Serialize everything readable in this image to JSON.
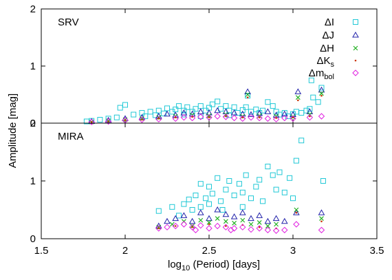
{
  "chart_data": {
    "type": "scatter",
    "xlabel": "log10 (Period) [days]",
    "ylabel": "Amplitude [mag]",
    "xlim": [
      1.5,
      3.5
    ],
    "x_ticks": [
      "1.5",
      "2",
      "2.5",
      "3",
      "3.5"
    ],
    "legend_position": "top-right",
    "series": [
      {
        "key": "I",
        "name": "ΔI",
        "marker": "square",
        "color": "#1fc8d6"
      },
      {
        "key": "J",
        "name": "ΔJ",
        "marker": "triangle",
        "color": "#2222aa"
      },
      {
        "key": "H",
        "name": "ΔH",
        "marker": "cross",
        "color": "#22b022"
      },
      {
        "key": "Ks",
        "name": "ΔKs",
        "marker": "dot",
        "color": "#cc3300"
      },
      {
        "key": "mbol",
        "name": "Δmbol",
        "marker": "diamond",
        "color": "#e020e0"
      }
    ],
    "panels": [
      {
        "label": "SRV",
        "ylim": [
          0,
          2
        ],
        "y_ticks": [
          "0",
          "1",
          "2"
        ],
        "points": {
          "I": [
            [
              1.77,
              0.03
            ],
            [
              1.8,
              0.04
            ],
            [
              1.85,
              0.06
            ],
            [
              1.9,
              0.08
            ],
            [
              1.95,
              0.1
            ],
            [
              1.97,
              0.27
            ],
            [
              2.0,
              0.32
            ],
            [
              2.05,
              0.15
            ],
            [
              2.1,
              0.18
            ],
            [
              2.12,
              0.12
            ],
            [
              2.15,
              0.2
            ],
            [
              2.18,
              0.14
            ],
            [
              2.2,
              0.22
            ],
            [
              2.23,
              0.17
            ],
            [
              2.25,
              0.26
            ],
            [
              2.28,
              0.2
            ],
            [
              2.3,
              0.24
            ],
            [
              2.32,
              0.3
            ],
            [
              2.35,
              0.22
            ],
            [
              2.37,
              0.28
            ],
            [
              2.4,
              0.2
            ],
            [
              2.42,
              0.25
            ],
            [
              2.45,
              0.3
            ],
            [
              2.48,
              0.22
            ],
            [
              2.5,
              0.27
            ],
            [
              2.52,
              0.33
            ],
            [
              2.55,
              0.38
            ],
            [
              2.57,
              0.25
            ],
            [
              2.6,
              0.3
            ],
            [
              2.62,
              0.22
            ],
            [
              2.65,
              0.28
            ],
            [
              2.67,
              0.18
            ],
            [
              2.7,
              0.23
            ],
            [
              2.72,
              0.28
            ],
            [
              2.75,
              0.2
            ],
            [
              2.78,
              0.24
            ],
            [
              2.8,
              0.18
            ],
            [
              2.82,
              0.22
            ],
            [
              2.85,
              0.37
            ],
            [
              2.88,
              0.3
            ],
            [
              2.9,
              0.2
            ],
            [
              2.92,
              0.15
            ],
            [
              2.95,
              0.18
            ],
            [
              2.97,
              0.12
            ],
            [
              3.0,
              0.16
            ],
            [
              3.02,
              0.2
            ],
            [
              3.05,
              0.18
            ],
            [
              3.08,
              0.22
            ],
            [
              3.1,
              0.25
            ],
            [
              3.12,
              0.45
            ],
            [
              3.15,
              0.37
            ],
            [
              3.17,
              0.62
            ],
            [
              3.11,
              0.75
            ],
            [
              2.73,
              0.48
            ],
            [
              2.35,
              0.15
            ],
            [
              2.45,
              0.12
            ],
            [
              2.62,
              0.14
            ]
          ],
          "J": [
            [
              1.8,
              0.03
            ],
            [
              1.9,
              0.05
            ],
            [
              2.0,
              0.08
            ],
            [
              2.1,
              0.1
            ],
            [
              2.2,
              0.12
            ],
            [
              2.25,
              0.16
            ],
            [
              2.3,
              0.14
            ],
            [
              2.35,
              0.18
            ],
            [
              2.4,
              0.16
            ],
            [
              2.45,
              0.2
            ],
            [
              2.5,
              0.18
            ],
            [
              2.55,
              0.22
            ],
            [
              2.6,
              0.2
            ],
            [
              2.65,
              0.18
            ],
            [
              2.7,
              0.16
            ],
            [
              2.73,
              0.55
            ],
            [
              2.75,
              0.15
            ],
            [
              2.8,
              0.17
            ],
            [
              2.85,
              0.2
            ],
            [
              2.9,
              0.14
            ],
            [
              2.95,
              0.16
            ],
            [
              3.0,
              0.15
            ],
            [
              3.03,
              0.55
            ],
            [
              3.1,
              0.2
            ],
            [
              3.17,
              0.58
            ]
          ],
          "H": [
            [
              1.8,
              0.02
            ],
            [
              1.9,
              0.04
            ],
            [
              2.0,
              0.06
            ],
            [
              2.1,
              0.08
            ],
            [
              2.2,
              0.1
            ],
            [
              2.3,
              0.12
            ],
            [
              2.4,
              0.14
            ],
            [
              2.5,
              0.13
            ],
            [
              2.6,
              0.15
            ],
            [
              2.7,
              0.12
            ],
            [
              2.73,
              0.5
            ],
            [
              2.8,
              0.13
            ],
            [
              2.9,
              0.12
            ],
            [
              3.0,
              0.11
            ],
            [
              3.03,
              0.45
            ],
            [
              3.1,
              0.15
            ],
            [
              3.17,
              0.52
            ]
          ],
          "Ks": [
            [
              1.8,
              0.02
            ],
            [
              1.9,
              0.03
            ],
            [
              2.0,
              0.05
            ],
            [
              2.1,
              0.06
            ],
            [
              2.2,
              0.08
            ],
            [
              2.3,
              0.1
            ],
            [
              2.4,
              0.11
            ],
            [
              2.5,
              0.1
            ],
            [
              2.6,
              0.12
            ],
            [
              2.7,
              0.1
            ],
            [
              2.73,
              0.45
            ],
            [
              2.8,
              0.1
            ],
            [
              2.9,
              0.09
            ],
            [
              3.0,
              0.1
            ],
            [
              3.03,
              0.4
            ],
            [
              3.1,
              0.12
            ],
            [
              3.17,
              0.48
            ]
          ],
          "mbol": [
            [
              1.8,
              0.02
            ],
            [
              1.9,
              0.03
            ],
            [
              2.0,
              0.05
            ],
            [
              2.1,
              0.06
            ],
            [
              2.2,
              0.07
            ],
            [
              2.3,
              0.08
            ],
            [
              2.35,
              0.1
            ],
            [
              2.4,
              0.09
            ],
            [
              2.45,
              0.11
            ],
            [
              2.5,
              0.1
            ],
            [
              2.55,
              0.12
            ],
            [
              2.6,
              0.11
            ],
            [
              2.65,
              0.09
            ],
            [
              2.7,
              0.08
            ],
            [
              2.75,
              0.1
            ],
            [
              2.8,
              0.09
            ],
            [
              2.85,
              0.08
            ],
            [
              2.9,
              0.07
            ],
            [
              2.95,
              0.09
            ],
            [
              3.0,
              0.08
            ],
            [
              3.1,
              0.1
            ],
            [
              3.17,
              0.12
            ]
          ]
        }
      },
      {
        "label": "MIRA",
        "ylim": [
          0,
          2
        ],
        "y_ticks": [
          "0",
          "1",
          "2"
        ],
        "points": {
          "I": [
            [
              2.2,
              0.48
            ],
            [
              2.28,
              0.55
            ],
            [
              2.32,
              0.4
            ],
            [
              2.35,
              0.6
            ],
            [
              2.38,
              0.68
            ],
            [
              2.4,
              0.5
            ],
            [
              2.42,
              0.75
            ],
            [
              2.45,
              0.95
            ],
            [
              2.48,
              0.7
            ],
            [
              2.5,
              0.9
            ],
            [
              2.5,
              0.6
            ],
            [
              2.52,
              0.78
            ],
            [
              2.55,
              1.05
            ],
            [
              2.57,
              0.65
            ],
            [
              2.6,
              0.85
            ],
            [
              2.62,
              1.0
            ],
            [
              2.65,
              0.75
            ],
            [
              2.68,
              0.95
            ],
            [
              2.7,
              0.8
            ],
            [
              2.72,
              1.1
            ],
            [
              2.75,
              0.7
            ],
            [
              2.78,
              0.9
            ],
            [
              2.8,
              1.02
            ],
            [
              2.82,
              0.65
            ],
            [
              2.85,
              1.25
            ],
            [
              2.88,
              1.1
            ],
            [
              2.9,
              0.85
            ],
            [
              2.92,
              1.15
            ],
            [
              2.95,
              0.8
            ],
            [
              2.98,
              1.05
            ],
            [
              3.0,
              0.7
            ],
            [
              3.02,
              1.35
            ],
            [
              3.05,
              1.7
            ],
            [
              3.18,
              1.0
            ],
            [
              2.58,
              0.5
            ],
            [
              2.45,
              0.55
            ],
            [
              2.7,
              0.55
            ]
          ],
          "J": [
            [
              2.2,
              0.22
            ],
            [
              2.25,
              0.3
            ],
            [
              2.3,
              0.35
            ],
            [
              2.35,
              0.4
            ],
            [
              2.4,
              0.3
            ],
            [
              2.45,
              0.45
            ],
            [
              2.5,
              0.35
            ],
            [
              2.55,
              0.5
            ],
            [
              2.6,
              0.42
            ],
            [
              2.65,
              0.38
            ],
            [
              2.7,
              0.45
            ],
            [
              2.75,
              0.35
            ],
            [
              2.8,
              0.4
            ],
            [
              2.85,
              0.3
            ],
            [
              2.9,
              0.35
            ],
            [
              2.95,
              0.3
            ],
            [
              3.02,
              0.45
            ],
            [
              3.17,
              0.45
            ]
          ],
          "H": [
            [
              2.2,
              0.2
            ],
            [
              2.28,
              0.25
            ],
            [
              2.35,
              0.3
            ],
            [
              2.4,
              0.22
            ],
            [
              2.45,
              0.32
            ],
            [
              2.5,
              0.28
            ],
            [
              2.55,
              0.35
            ],
            [
              2.6,
              0.3
            ],
            [
              2.65,
              0.27
            ],
            [
              2.7,
              0.32
            ],
            [
              2.75,
              0.25
            ],
            [
              2.8,
              0.28
            ],
            [
              2.85,
              0.22
            ],
            [
              2.9,
              0.25
            ],
            [
              3.02,
              0.5
            ],
            [
              3.17,
              0.35
            ]
          ],
          "Ks": [
            [
              2.2,
              0.18
            ],
            [
              2.3,
              0.22
            ],
            [
              2.4,
              0.2
            ],
            [
              2.5,
              0.25
            ],
            [
              2.6,
              0.22
            ],
            [
              2.7,
              0.24
            ],
            [
              2.8,
              0.2
            ],
            [
              2.9,
              0.18
            ],
            [
              3.02,
              0.45
            ],
            [
              3.17,
              0.3
            ]
          ],
          "mbol": [
            [
              2.2,
              0.18
            ],
            [
              2.25,
              0.2
            ],
            [
              2.3,
              0.22
            ],
            [
              2.35,
              0.25
            ],
            [
              2.4,
              0.2
            ],
            [
              2.42,
              0.15
            ],
            [
              2.45,
              0.23
            ],
            [
              2.5,
              0.18
            ],
            [
              2.55,
              0.22
            ],
            [
              2.6,
              0.2
            ],
            [
              2.63,
              0.15
            ],
            [
              2.65,
              0.18
            ],
            [
              2.7,
              0.2
            ],
            [
              2.75,
              0.16
            ],
            [
              2.8,
              0.18
            ],
            [
              2.85,
              0.15
            ],
            [
              2.9,
              0.14
            ],
            [
              2.95,
              0.15
            ],
            [
              3.02,
              0.25
            ],
            [
              3.17,
              0.15
            ]
          ]
        }
      }
    ]
  }
}
